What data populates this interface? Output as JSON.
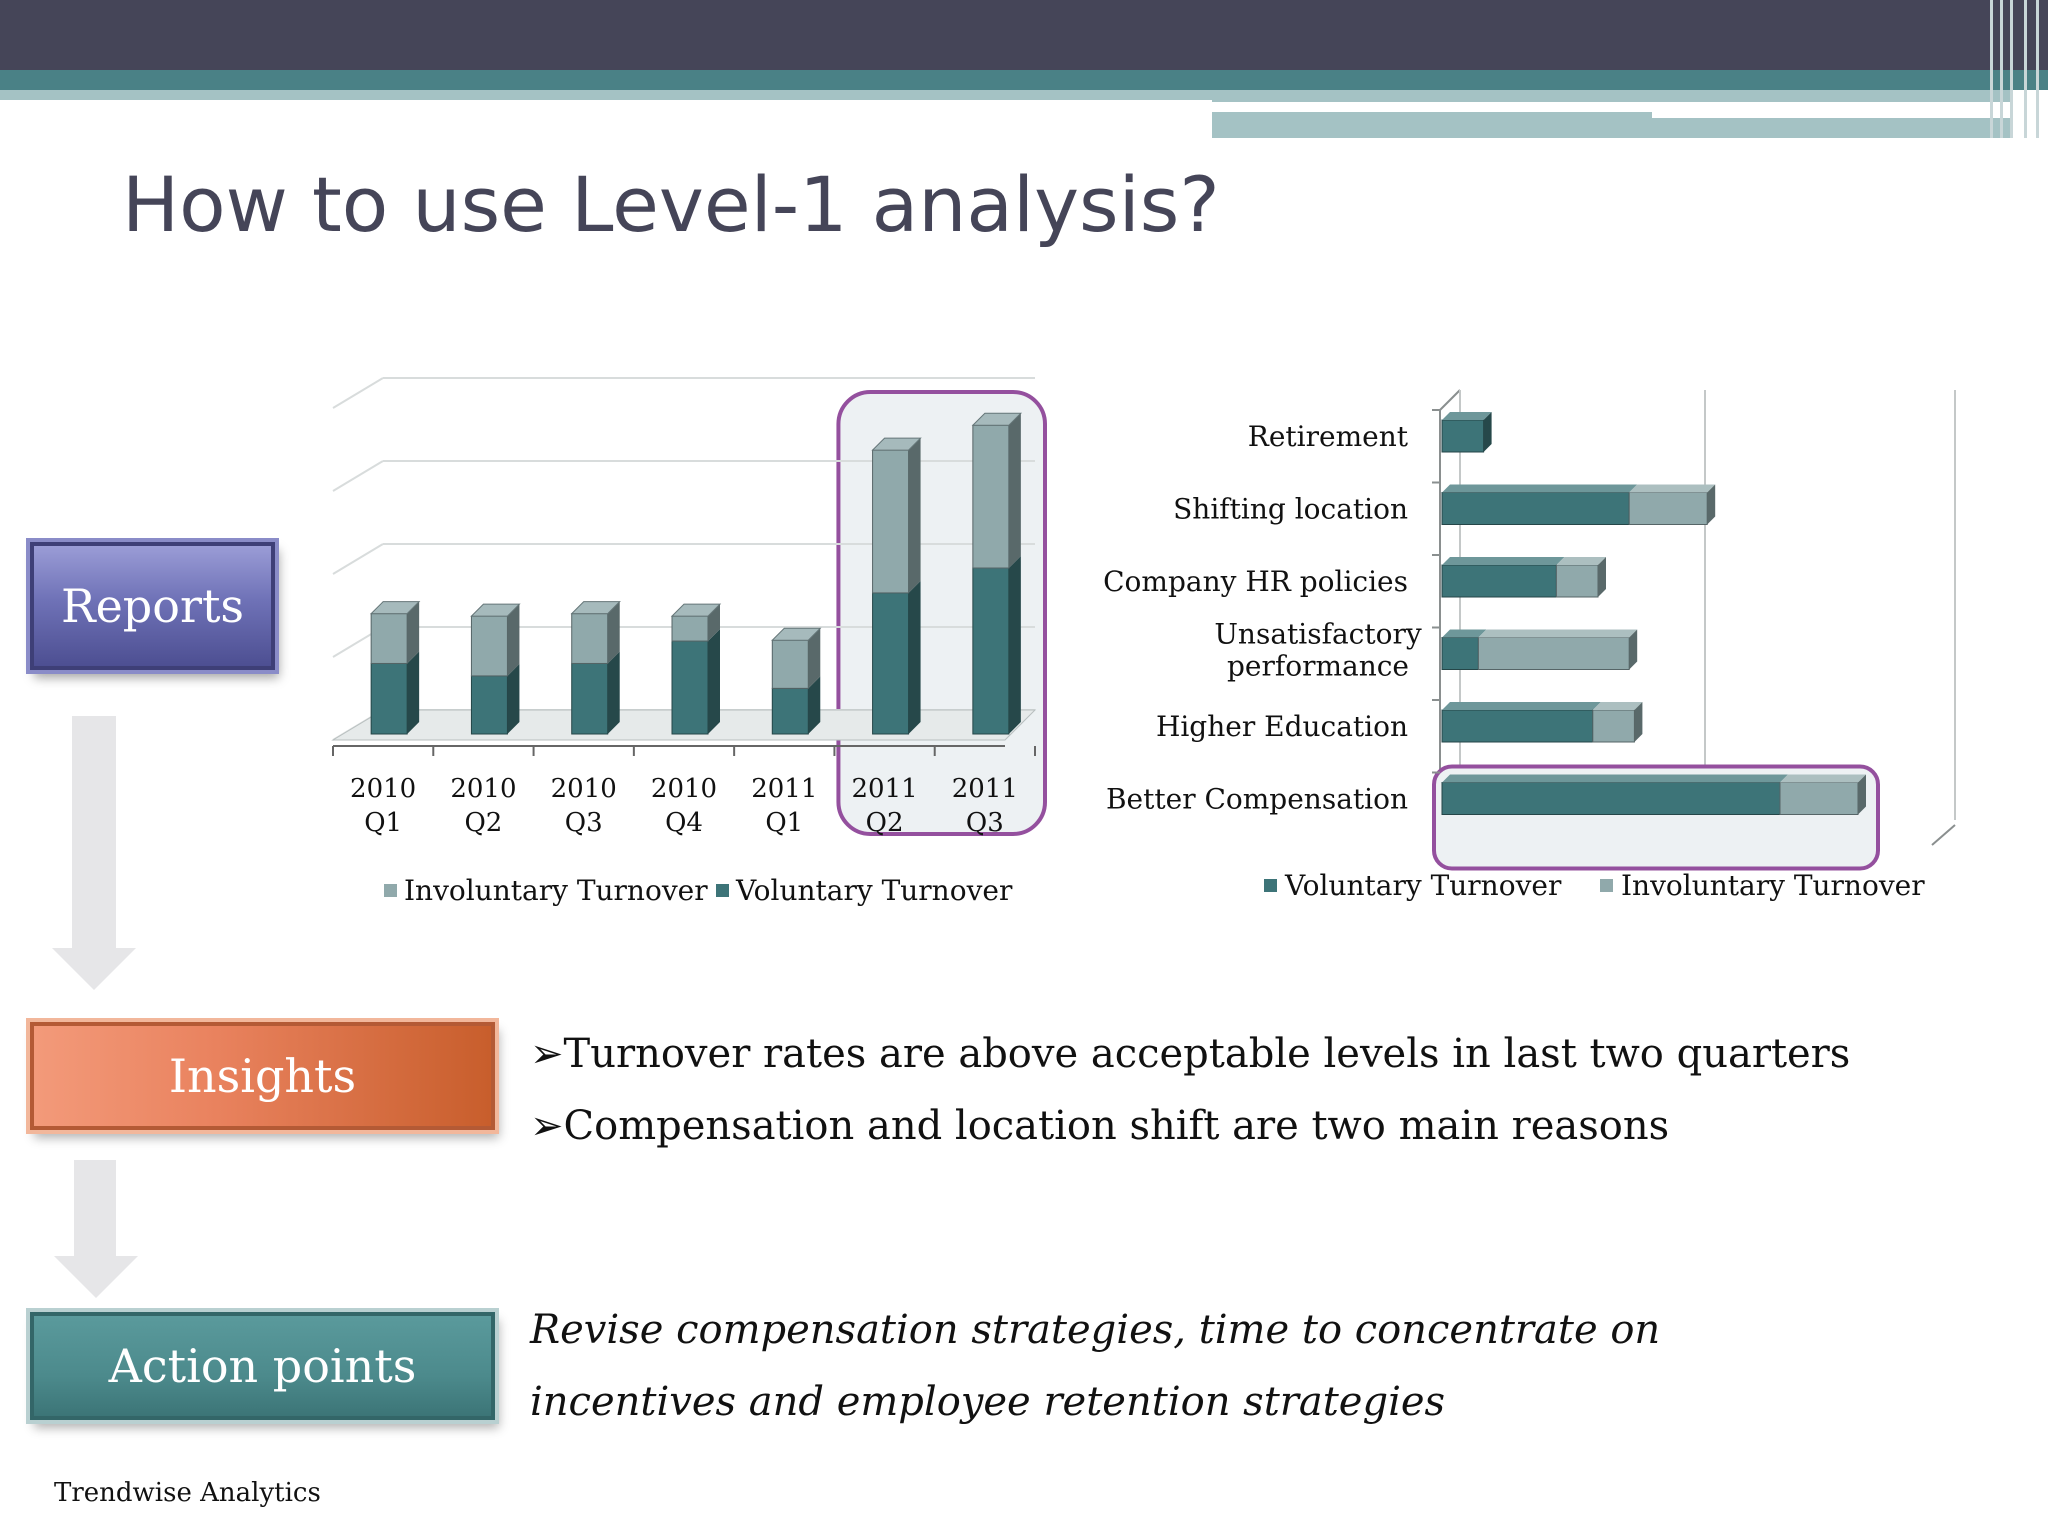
{
  "slide": {
    "title": "How to use Level-1 analysis?",
    "footer": "Trendwise Analytics"
  },
  "steps": {
    "reports": "Reports",
    "insights": "Insights",
    "action": "Action points"
  },
  "insights": {
    "bullet_glyph": "➢",
    "bullets": [
      "Turnover rates are above acceptable levels in last two quarters",
      "Compensation and location shift are two main reasons"
    ]
  },
  "action_text": "Revise compensation strategies, time to concentrate on incentives and employee retention strategies",
  "colors": {
    "voluntary": "#3d7478",
    "involuntary": "#90a9ab",
    "highlight": "#94509e",
    "header_dark": "#454558",
    "header_teal": "#4a8186"
  },
  "chart_data": [
    {
      "type": "bar",
      "stacked": true,
      "orientation": "vertical",
      "categories": [
        "2010 Q1",
        "2010 Q2",
        "2010 Q3",
        "2010 Q4",
        "2011 Q1",
        "2011 Q2",
        "2011 Q3"
      ],
      "category_lines": [
        [
          "2010",
          "Q1"
        ],
        [
          "2010",
          "Q2"
        ],
        [
          "2010",
          "Q3"
        ],
        [
          "2010",
          "Q4"
        ],
        [
          "2011",
          "Q1"
        ],
        [
          "2011",
          "Q2"
        ],
        [
          "2011",
          "Q3"
        ]
      ],
      "series": [
        {
          "name": "Voluntary Turnover",
          "values": [
            0.85,
            0.7,
            0.85,
            1.12,
            0.55,
            1.7,
            2.0
          ]
        },
        {
          "name": "Involuntary Turnover",
          "values": [
            0.6,
            0.72,
            0.6,
            0.3,
            0.58,
            1.72,
            1.72
          ]
        }
      ],
      "legend_order": [
        "Involuntary Turnover",
        "Voluntary Turnover"
      ],
      "legend": "bottom",
      "ylim": [
        0,
        4
      ],
      "grid": true,
      "highlight_categories": [
        "2011 Q2",
        "2011 Q3"
      ]
    },
    {
      "type": "bar",
      "stacked": true,
      "orientation": "horizontal",
      "categories": [
        "Retirement",
        "Shifting location",
        "Company HR policies",
        "Unsatisfactory performance",
        "Higher Education",
        "Better Compensation"
      ],
      "category_lines": [
        [
          "Retirement"
        ],
        [
          "Shifting location"
        ],
        [
          "Company HR policies"
        ],
        [
          "Unsatisfactory",
          "performance"
        ],
        [
          "Higher Education"
        ],
        [
          "Better Compensation"
        ]
      ],
      "series": [
        {
          "name": "Voluntary Turnover",
          "values": [
            0.8,
            3.6,
            2.2,
            0.7,
            2.9,
            6.5
          ]
        },
        {
          "name": "Involuntary Turnover",
          "values": [
            0,
            1.5,
            0.8,
            2.9,
            0.8,
            1.5
          ]
        }
      ],
      "legend": "bottom",
      "xlim": [
        0,
        10
      ],
      "grid": true,
      "highlight_categories": [
        "Better Compensation"
      ]
    }
  ]
}
